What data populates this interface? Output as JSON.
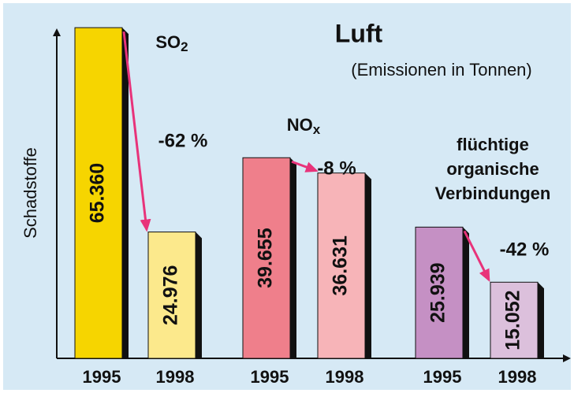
{
  "chart_data": {
    "type": "bar",
    "title": "Luft",
    "subtitle": "(Emissionen in Tonnen)",
    "y_label": "Schadstoffe",
    "ylim": [
      0,
      66000
    ],
    "groups": [
      {
        "name_lines": [
          "SO"
        ],
        "name_subscript": "2",
        "categories": [
          "1995",
          "1998"
        ],
        "values": [
          65360,
          24976
        ],
        "value_labels": [
          "65.360",
          "24.976"
        ],
        "colors": [
          "#f6d500",
          "#fce98c"
        ],
        "change": "-62 %"
      },
      {
        "name_lines": [
          "NO"
        ],
        "name_subscript": "x",
        "categories": [
          "1995",
          "1998"
        ],
        "values": [
          39655,
          36631
        ],
        "value_labels": [
          "39.655",
          "36.631"
        ],
        "colors": [
          "#ef7f8b",
          "#f7b4b8"
        ],
        "change": "-8 %"
      },
      {
        "name_lines": [
          "flüchtige",
          "organische",
          "Verbindungen"
        ],
        "categories": [
          "1995",
          "1998"
        ],
        "values": [
          25939,
          15052
        ],
        "value_labels": [
          "25.939",
          "15.052"
        ],
        "colors": [
          "#c590c4",
          "#dcc0dc"
        ],
        "change": "-42 %"
      }
    ]
  }
}
